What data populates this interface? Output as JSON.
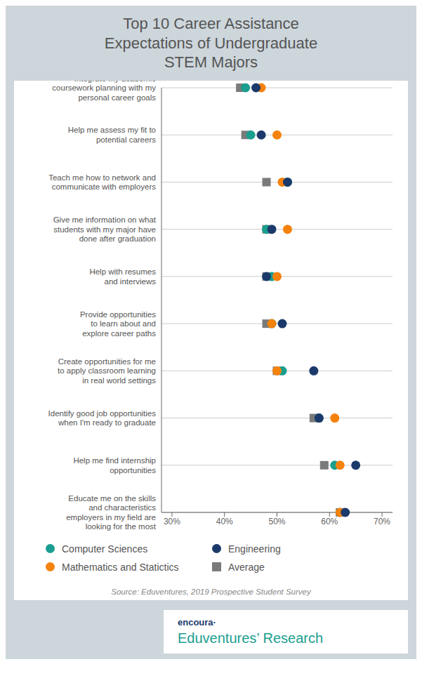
{
  "chart_data": {
    "type": "scatter",
    "title": "Top 10 Career Assistance\nExpectations of Undergraduate\nSTEM Majors",
    "orientation": "horizontal",
    "categories": [
      "Integrate my academic\ncoursework planning with my\npersonal career goals",
      "Help me assess my fit to\npotential careers",
      "Teach me how to network and\ncommunicate with employers",
      "Give me information on what\nstudents with my major have\ndone after graduation",
      "Help with resumes\nand interviews",
      "Provide opportunities\nto learn about and\nexplore career paths",
      "Create opportunities for me\nto apply classroom learning\nin real world settings",
      "Identify good job opportunities\nwhen I'm ready to graduate",
      "Help me find internship\nopportunities",
      "Educate me on the skills\nand characteristics\nemployers in my field are\nlooking for the most"
    ],
    "series": [
      {
        "name": "Computer Sciences",
        "color": "#1a9e8f",
        "marker": "circle",
        "values": [
          0.44,
          0.45,
          0.52,
          0.48,
          0.49,
          0.49,
          0.51,
          0.58,
          0.61,
          0.62
        ]
      },
      {
        "name": "Mathematics and Statictics",
        "color": "#f5820d",
        "marker": "circle",
        "values": [
          0.47,
          0.5,
          0.51,
          0.52,
          0.5,
          0.49,
          0.5,
          0.61,
          0.62,
          0.62
        ]
      },
      {
        "name": "Engineering",
        "color": "#1b3a6b",
        "marker": "circle",
        "values": [
          0.46,
          0.47,
          0.52,
          0.49,
          0.48,
          0.51,
          0.57,
          0.58,
          0.65,
          0.63
        ]
      },
      {
        "name": "Average",
        "color": "#7a7a7a",
        "marker": "square",
        "values": [
          0.43,
          0.44,
          0.48,
          0.48,
          0.48,
          0.48,
          0.5,
          0.57,
          0.59,
          0.62
        ]
      }
    ],
    "xlim": [
      0.28,
      0.72
    ],
    "xticks": [
      {
        "value": 0.3,
        "label": "30%"
      },
      {
        "value": 0.4,
        "label": "40%"
      },
      {
        "value": 0.5,
        "label": "50%"
      },
      {
        "value": 0.6,
        "label": "60%"
      },
      {
        "value": 0.7,
        "label": "70%"
      }
    ],
    "grid": true,
    "legend": "bottom",
    "annotations": [
      "Source: Eduventures, 2019 Prospective Student Survey",
      "encoura·",
      "Eduventures’ Research"
    ]
  }
}
